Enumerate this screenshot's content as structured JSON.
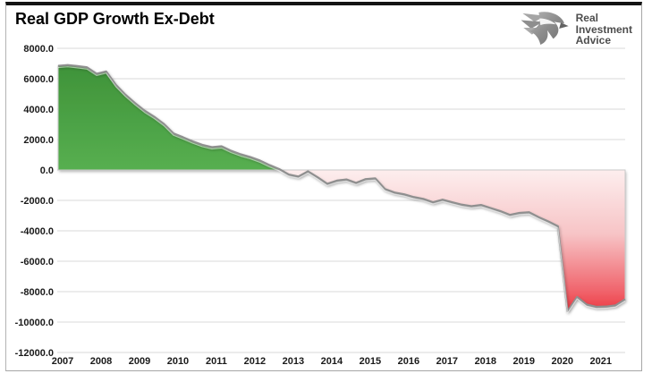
{
  "header": {
    "title": "Real GDP Growth Ex-Debt"
  },
  "logo": {
    "icon": "eagle-icon",
    "line1": "Real",
    "line2": "Investment",
    "line3": "Advice"
  },
  "chart_data": {
    "type": "area",
    "title": "Real GDP Growth Ex-Debt",
    "xlabel": "",
    "ylabel": "",
    "ylim": [
      -12000,
      8000
    ],
    "grid": "horizontal-only",
    "legend": "none",
    "x_tick_labels": [
      "2007",
      "2008",
      "2009",
      "2010",
      "2011",
      "2012",
      "2013",
      "2014",
      "2015",
      "2016",
      "2017",
      "2018",
      "2019",
      "2020",
      "2021"
    ],
    "y_tick_labels": [
      "8000.0",
      "6000.0",
      "4000.0",
      "2000.0",
      "0.0",
      "-2000.0",
      "-4000.0",
      "-6000.0",
      "-8000.0",
      "-10000.0",
      "-12000.0"
    ],
    "y_tick_values": [
      8000,
      6000,
      4000,
      2000,
      0,
      -2000,
      -4000,
      -6000,
      -8000,
      -10000,
      -12000
    ],
    "frequency": "quarterly",
    "x_start_year": 2007,
    "series": [
      {
        "name": "Real GDP Growth Ex-Debt",
        "values": [
          6850,
          6900,
          6830,
          6750,
          6330,
          6480,
          5600,
          4950,
          4400,
          3900,
          3500,
          3030,
          2400,
          2150,
          1880,
          1650,
          1500,
          1560,
          1260,
          1030,
          850,
          620,
          320,
          60,
          -300,
          -430,
          -90,
          -480,
          -910,
          -700,
          -620,
          -850,
          -600,
          -550,
          -1250,
          -1480,
          -1600,
          -1780,
          -1900,
          -2120,
          -1950,
          -2120,
          -2280,
          -2380,
          -2300,
          -2500,
          -2700,
          -2950,
          -2820,
          -2780,
          -3100,
          -3380,
          -3700,
          -9290,
          -8350,
          -8850,
          -9000,
          -8980,
          -8900,
          -8500
        ]
      }
    ],
    "colors": {
      "positive_fill_top": "#3f9339",
      "positive_fill_mid": "#5eb757",
      "positive_fill_bottom": "#78cc6f",
      "negative_fill_top": "#fdeeee",
      "negative_fill_mid": "#f7c4c6",
      "negative_fill_low": "#f0646c",
      "negative_fill_deep": "#ed3841",
      "line": "#8f8f8f",
      "line_highlight": "#ffffff",
      "gridline": "#d9d9d9",
      "zero_edge": "#c9c9c9",
      "tick_text": "#1a1a1a"
    }
  }
}
